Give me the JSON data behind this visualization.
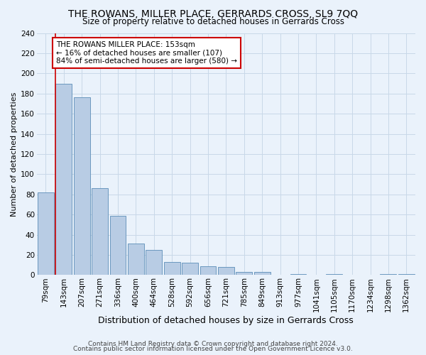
{
  "title": "THE ROWANS, MILLER PLACE, GERRARDS CROSS, SL9 7QQ",
  "subtitle": "Size of property relative to detached houses in Gerrards Cross",
  "xlabel": "Distribution of detached houses by size in Gerrards Cross",
  "ylabel": "Number of detached properties",
  "bar_labels": [
    "79sqm",
    "143sqm",
    "207sqm",
    "271sqm",
    "336sqm",
    "400sqm",
    "464sqm",
    "528sqm",
    "592sqm",
    "656sqm",
    "721sqm",
    "785sqm",
    "849sqm",
    "913sqm",
    "977sqm",
    "1041sqm",
    "1105sqm",
    "1170sqm",
    "1234sqm",
    "1298sqm",
    "1362sqm"
  ],
  "bar_values": [
    82,
    190,
    176,
    86,
    59,
    31,
    25,
    13,
    12,
    9,
    8,
    3,
    3,
    0,
    1,
    0,
    1,
    0,
    0,
    1,
    1
  ],
  "bar_color": "#b8cce4",
  "bar_edge_color": "#5b8db8",
  "grid_color": "#c8d8e8",
  "background_color": "#eaf2fb",
  "vline_color": "#cc0000",
  "annotation_text": "THE ROWANS MILLER PLACE: 153sqm\n← 16% of detached houses are smaller (107)\n84% of semi-detached houses are larger (580) →",
  "annotation_box_color": "#ffffff",
  "annotation_box_edge": "#cc0000",
  "ylim": [
    0,
    240
  ],
  "yticks": [
    0,
    20,
    40,
    60,
    80,
    100,
    120,
    140,
    160,
    180,
    200,
    220,
    240
  ],
  "footer1": "Contains HM Land Registry data © Crown copyright and database right 2024.",
  "footer2": "Contains public sector information licensed under the Open Government Licence v3.0.",
  "title_fontsize": 10,
  "subtitle_fontsize": 8.5,
  "xlabel_fontsize": 9,
  "ylabel_fontsize": 8,
  "tick_fontsize": 7.5,
  "annotation_fontsize": 7.5,
  "footer_fontsize": 6.5
}
